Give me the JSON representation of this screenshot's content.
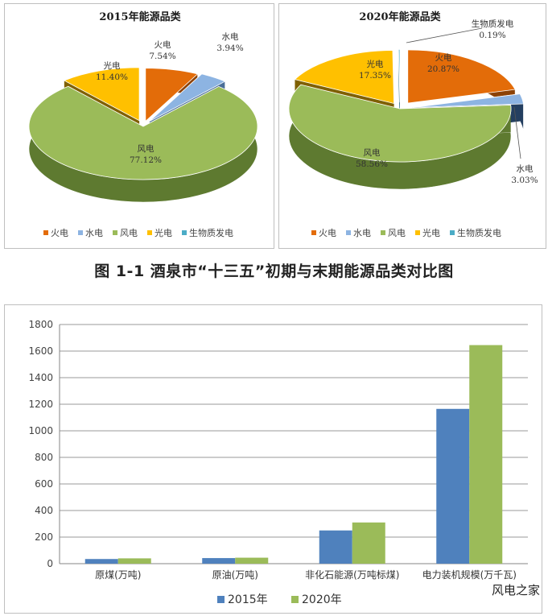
{
  "caption": "图 1-1 酒泉市“十三五”初期与末期能源品类对比图",
  "watermark": "风电之家",
  "chart_data": [
    {
      "type": "pie",
      "title": "2015年能源品类",
      "slices": [
        {
          "name": "火电",
          "value": 7.54,
          "label": "7.54%",
          "color": "#E36C09",
          "dark": "#8C4206"
        },
        {
          "name": "水电",
          "value": 3.94,
          "label": "3.94%",
          "color": "#8DB4E2",
          "dark": "#4A6E98"
        },
        {
          "name": "风电",
          "value": 77.12,
          "label": "77.12%",
          "color": "#9BBB59",
          "dark": "#5E7A30"
        },
        {
          "name": "光电",
          "value": 11.4,
          "label": "11.40%",
          "color": "#FFC000",
          "dark": "#7F6000"
        }
      ],
      "legend": [
        {
          "name": "火电",
          "color": "#E36C09"
        },
        {
          "name": "水电",
          "color": "#8DB4E2"
        },
        {
          "name": "风电",
          "color": "#9BBB59"
        },
        {
          "name": "光电",
          "color": "#FFC000"
        },
        {
          "name": "生物质发电",
          "color": "#4BACC6"
        }
      ]
    },
    {
      "type": "pie",
      "title": "2020年能源品类",
      "slices": [
        {
          "name": "火电",
          "value": 20.87,
          "label": "20.87%",
          "color": "#E36C09",
          "dark": "#8C4206"
        },
        {
          "name": "水电",
          "value": 3.03,
          "label": "3.03%",
          "color": "#8DB4E2",
          "dark": "#243F60"
        },
        {
          "name": "风电",
          "value": 58.56,
          "label": "58.56%",
          "color": "#9BBB59",
          "dark": "#5E7A30"
        },
        {
          "name": "光电",
          "value": 17.35,
          "label": "17.35%",
          "color": "#FFC000",
          "dark": "#7F6000"
        },
        {
          "name": "生物质发电",
          "value": 0.19,
          "label": "0.19%",
          "color": "#4BACC6",
          "dark": "#2E6E80"
        }
      ],
      "legend": [
        {
          "name": "火电",
          "color": "#E36C09"
        },
        {
          "name": "水电",
          "color": "#8DB4E2"
        },
        {
          "name": "风电",
          "color": "#9BBB59"
        },
        {
          "name": "光电",
          "color": "#FFC000"
        },
        {
          "name": "生物质发电",
          "color": "#4BACC6"
        }
      ]
    },
    {
      "type": "bar",
      "categories": [
        "原煤(万吨)",
        "原油(万吨)",
        "非化石能源(万吨标煤)",
        "电力装机规模(万千瓦)"
      ],
      "series": [
        {
          "name": "2015年",
          "values": [
            35,
            42,
            250,
            1165
          ],
          "color": "#4F81BD"
        },
        {
          "name": "2020年",
          "values": [
            40,
            45,
            310,
            1645
          ],
          "color": "#9BBB59"
        }
      ],
      "ylim": [
        0,
        1800
      ],
      "yticks": [
        0,
        200,
        400,
        600,
        800,
        1000,
        1200,
        1400,
        1600,
        1800
      ],
      "grid": true,
      "legend_position": "bottom"
    }
  ]
}
